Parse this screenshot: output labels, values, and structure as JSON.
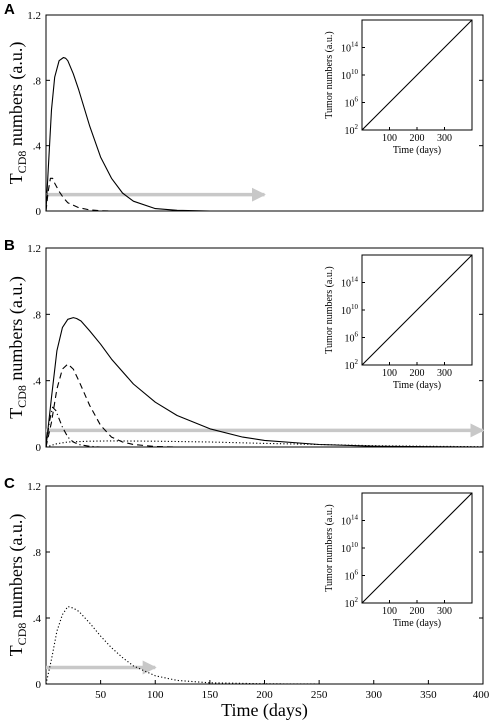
{
  "chart_data": [
    {
      "panel": "A",
      "type": "line",
      "xlabel": "",
      "ylabel": "T_CD8 numbers (a.u.)",
      "ylabel_main": "T",
      "ylabel_sub": "CD8",
      "ylabel_rest": " numbers (a.u.)",
      "xlim": [
        0,
        400
      ],
      "ylim": [
        0,
        1.2
      ],
      "xticks": [],
      "yticks": [
        0,
        0.4,
        0.8,
        1.2
      ],
      "ytick_labels": [
        "0",
        ".4",
        ".8",
        "1.2"
      ],
      "series": [
        {
          "style": "solid",
          "x": [
            0,
            2,
            5,
            8,
            12,
            16,
            18,
            20,
            25,
            30,
            40,
            50,
            60,
            70,
            80,
            100,
            120,
            150,
            200
          ],
          "y": [
            0,
            0.25,
            0.62,
            0.82,
            0.92,
            0.94,
            0.935,
            0.92,
            0.84,
            0.74,
            0.52,
            0.33,
            0.2,
            0.11,
            0.06,
            0.015,
            0.004,
            0.0,
            0.0
          ]
        },
        {
          "style": "dashed",
          "x": [
            0,
            2,
            4,
            6,
            8,
            12,
            16,
            20,
            30,
            40,
            50,
            60
          ],
          "y": [
            0,
            0.12,
            0.2,
            0.2,
            0.17,
            0.12,
            0.08,
            0.05,
            0.02,
            0.007,
            0.002,
            0.0
          ]
        }
      ],
      "arrow": {
        "x": [
          0,
          200
        ],
        "y": 0.1,
        "color": "#c8c8c8"
      },
      "inset": {
        "xlabel": "Time (days)",
        "ylabel": "Tumor numbers (a.u.)",
        "xticks": [
          100,
          200,
          300
        ],
        "xtick_labels": [
          "100",
          "200",
          "300"
        ],
        "xlim": [
          0,
          400
        ],
        "ylim_log10": [
          2,
          18
        ],
        "ytick_log10": [
          2,
          6,
          10,
          14
        ],
        "ytick_base": "10",
        "ytick_exps": [
          "2",
          "6",
          "10",
          "14"
        ],
        "line_x": [
          0,
          400
        ],
        "line_log10_y": [
          2,
          18
        ]
      }
    },
    {
      "panel": "B",
      "type": "line",
      "xlabel": "",
      "ylabel": "T_CD8 numbers (a.u.)",
      "ylabel_main": "T",
      "ylabel_sub": "CD8",
      "ylabel_rest": " numbers (a.u.)",
      "xlim": [
        0,
        400
      ],
      "ylim": [
        0,
        1.2
      ],
      "xticks": [],
      "yticks": [
        0,
        0.4,
        0.8,
        1.2
      ],
      "ytick_labels": [
        "0",
        ".4",
        ".8",
        "1.2"
      ],
      "series": [
        {
          "style": "solid",
          "x": [
            0,
            5,
            10,
            15,
            20,
            25,
            28,
            32,
            40,
            50,
            60,
            80,
            100,
            120,
            150,
            180,
            200,
            250,
            300,
            350,
            400
          ],
          "y": [
            0,
            0.3,
            0.58,
            0.72,
            0.77,
            0.78,
            0.775,
            0.76,
            0.7,
            0.62,
            0.53,
            0.38,
            0.27,
            0.19,
            0.11,
            0.06,
            0.04,
            0.015,
            0.005,
            0.002,
            0.0
          ]
        },
        {
          "style": "dashed",
          "x": [
            0,
            5,
            10,
            15,
            20,
            25,
            30,
            40,
            50,
            60,
            70,
            80,
            100,
            120
          ],
          "y": [
            0,
            0.15,
            0.35,
            0.47,
            0.5,
            0.47,
            0.4,
            0.25,
            0.13,
            0.06,
            0.03,
            0.015,
            0.003,
            0.0
          ]
        },
        {
          "style": "dashdot",
          "x": [
            0,
            3,
            6,
            9,
            12,
            15,
            20,
            25,
            30,
            40,
            50
          ],
          "y": [
            0,
            0.15,
            0.24,
            0.22,
            0.17,
            0.12,
            0.06,
            0.03,
            0.015,
            0.004,
            0.0
          ]
        },
        {
          "style": "dotted",
          "x": [
            0,
            10,
            20,
            40,
            60,
            100,
            150,
            200,
            250,
            300,
            350,
            400
          ],
          "y": [
            0,
            0.02,
            0.03,
            0.035,
            0.037,
            0.035,
            0.03,
            0.022,
            0.015,
            0.008,
            0.004,
            0.002
          ]
        }
      ],
      "arrow": {
        "x": [
          0,
          400
        ],
        "y": 0.1,
        "color": "#c8c8c8"
      },
      "inset": {
        "xlabel": "Time (days)",
        "ylabel": "Tumor numbers (a.u.)",
        "xticks": [
          100,
          200,
          300
        ],
        "xtick_labels": [
          "100",
          "200",
          "300"
        ],
        "xlim": [
          0,
          400
        ],
        "ylim_log10": [
          2,
          18
        ],
        "ytick_log10": [
          2,
          6,
          10,
          14
        ],
        "ytick_base": "10",
        "ytick_exps": [
          "2",
          "6",
          "10",
          "14"
        ],
        "line_x": [
          0,
          400
        ],
        "line_log10_y": [
          2,
          18
        ]
      }
    },
    {
      "panel": "C",
      "type": "line",
      "xlabel": "Time (days)",
      "ylabel": "T_CD8 numbers (a.u.)",
      "ylabel_main": "T",
      "ylabel_sub": "CD8",
      "ylabel_rest": " numbers (a.u.)",
      "xlim": [
        0,
        400
      ],
      "ylim": [
        0,
        1.2
      ],
      "xticks": [
        50,
        100,
        150,
        200,
        250,
        300,
        350,
        400
      ],
      "xtick_labels": [
        "50",
        "100",
        "150",
        "200",
        "250",
        "300",
        "350",
        "400"
      ],
      "yticks": [
        0,
        0.4,
        0.8,
        1.2
      ],
      "ytick_labels": [
        "0",
        ".4",
        ".8",
        "1.2"
      ],
      "series": [
        {
          "style": "dotted",
          "x": [
            0,
            5,
            10,
            15,
            20,
            25,
            30,
            40,
            50,
            60,
            70,
            80,
            100,
            120,
            150,
            200,
            250,
            300
          ],
          "y": [
            0,
            0.15,
            0.32,
            0.42,
            0.47,
            0.46,
            0.44,
            0.37,
            0.29,
            0.22,
            0.16,
            0.11,
            0.05,
            0.022,
            0.007,
            0.001,
            0.0,
            0.0
          ]
        }
      ],
      "arrow": {
        "x": [
          0,
          100
        ],
        "y": 0.1,
        "color": "#c8c8c8"
      },
      "inset": {
        "xlabel": "Time (days)",
        "ylabel": "Tumor numbers (a.u.)",
        "xticks": [
          100,
          200,
          300
        ],
        "xtick_labels": [
          "100",
          "200",
          "300"
        ],
        "xlim": [
          0,
          400
        ],
        "ylim_log10": [
          2,
          18
        ],
        "ytick_log10": [
          2,
          6,
          10,
          14
        ],
        "ytick_base": "10",
        "ytick_exps": [
          "2",
          "6",
          "10",
          "14"
        ],
        "line_x": [
          0,
          400
        ],
        "line_log10_y": [
          2,
          18
        ]
      }
    }
  ]
}
